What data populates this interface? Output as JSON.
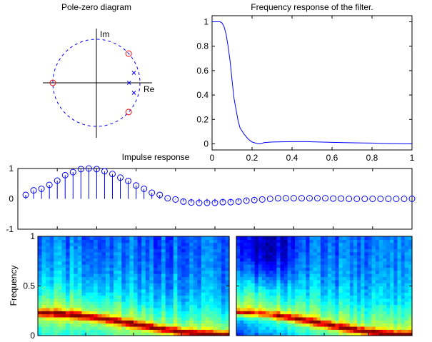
{
  "chart_data": [
    {
      "type": "scatter",
      "title": "Pole-zero diagram",
      "axis_labels": {
        "re": "Re",
        "im": "Im"
      },
      "unit_circle": true,
      "zeros": [
        {
          "re": 0.74,
          "im": 0.67
        },
        {
          "re": 0.74,
          "im": -0.67
        },
        {
          "re": -1.0,
          "im": 0.0
        }
      ],
      "poles": [
        {
          "re": 0.86,
          "im": 0.23
        },
        {
          "re": 0.86,
          "im": -0.23
        },
        {
          "re": 0.75,
          "im": 0.0
        }
      ],
      "colors": {
        "zeros": "#ff0000",
        "poles": "#0000ff",
        "circle": "#0000ff",
        "axes": "#000000"
      }
    },
    {
      "type": "line",
      "title": "Frequency response of the filter.",
      "xlabel": "",
      "ylabel": "",
      "xlim": [
        0,
        1
      ],
      "ylim": [
        -0.05,
        1.05
      ],
      "xticks": [
        "0",
        "0.2",
        "0.4",
        "0.6",
        "0.8",
        "1"
      ],
      "yticks": [
        "0",
        "0.2",
        "0.4",
        "0.6",
        "0.8",
        "1"
      ],
      "grid": false,
      "color": "#0000ff",
      "x": [
        0,
        0.04,
        0.05,
        0.06,
        0.07,
        0.08,
        0.09,
        0.1,
        0.11,
        0.12,
        0.13,
        0.14,
        0.16,
        0.18,
        0.2,
        0.22,
        0.24,
        0.26,
        0.3,
        0.4,
        0.47,
        0.6,
        0.66,
        0.8,
        0.86,
        1
      ],
      "y": [
        1,
        1,
        0.99,
        0.96,
        0.9,
        0.8,
        0.68,
        0.52,
        0.37,
        0.28,
        0.19,
        0.13,
        0.08,
        0.04,
        0.015,
        0.005,
        0,
        0.01,
        0.015,
        0.018,
        0.018,
        0.012,
        0.01,
        0.006,
        0.003,
        0
      ]
    },
    {
      "type": "stem",
      "title": "Impulse response",
      "xlim": [
        0,
        50
      ],
      "ylim": [
        -1,
        1
      ],
      "yticks": [
        "-1",
        "0",
        "1"
      ],
      "grid": false,
      "color": "#0000ff",
      "values": [
        0.13,
        0.28,
        0.33,
        0.46,
        0.6,
        0.78,
        0.88,
        0.98,
        1.0,
        0.98,
        0.91,
        0.82,
        0.7,
        0.59,
        0.44,
        0.33,
        0.2,
        0.13,
        0.02,
        -0.02,
        -0.09,
        -0.12,
        -0.13,
        -0.13,
        -0.13,
        -0.11,
        -0.11,
        -0.09,
        -0.06,
        -0.04,
        -0.02,
        0,
        0.02,
        0.02,
        0.02,
        0.02,
        0.02,
        0.02,
        0.02,
        0.01,
        0.01,
        0,
        0,
        0,
        0,
        0,
        0,
        0,
        0,
        0
      ]
    },
    {
      "type": "heatmap",
      "title": "",
      "ylabel": "Frequency",
      "ylim": [
        0,
        1
      ],
      "yticks": [
        "0",
        "0.5",
        "1"
      ],
      "colormap": "jet",
      "ridge_start": 0.23,
      "ridge_end": 0.01
    },
    {
      "type": "heatmap",
      "title": "",
      "ylim": [
        0,
        1
      ],
      "colormap": "jet",
      "ridge_start": 0.23,
      "ridge_end": 0.01
    }
  ]
}
